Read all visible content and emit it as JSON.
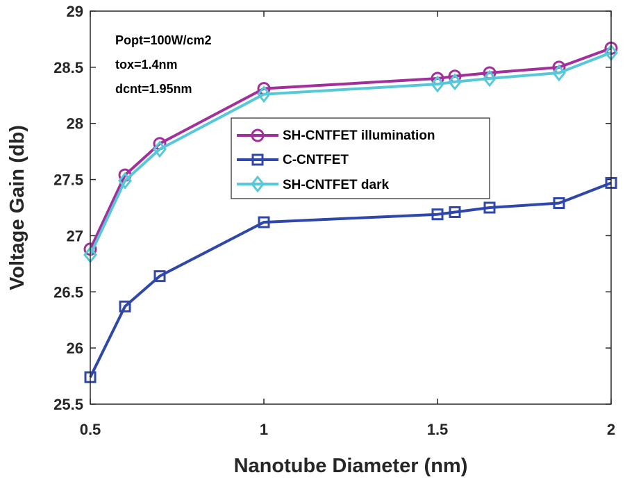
{
  "chart_data": {
    "type": "line",
    "title": "",
    "xlabel": "Nanotube Diameter  (nm)",
    "ylabel": "Voltage Gain  (db)",
    "xlim": [
      0.5,
      2
    ],
    "ylim": [
      25.5,
      29
    ],
    "xticks": [
      0.5,
      1,
      1.5,
      2
    ],
    "xtick_labels": [
      "0.5",
      "1",
      "1.5",
      "2"
    ],
    "yticks": [
      25.5,
      26,
      26.5,
      27,
      27.5,
      28,
      28.5,
      29
    ],
    "ytick_labels": [
      "25.5",
      "26",
      "26.5",
      "27",
      "27.5",
      "28",
      "28.5",
      "29"
    ],
    "grid": false,
    "legend_position": "center-right",
    "annotations": [
      "Popt=100W/cm2",
      "tox=1.4nm",
      "dcnt=1.95nm"
    ],
    "x": [
      0.5,
      0.6,
      0.7,
      1.0,
      1.5,
      1.55,
      1.65,
      1.85,
      2.0
    ],
    "series": [
      {
        "name": "SH-CNTFET illumination",
        "color": "#a2309b",
        "marker": "circle",
        "values": [
          26.88,
          27.54,
          27.82,
          28.31,
          28.4,
          28.42,
          28.45,
          28.5,
          28.67
        ]
      },
      {
        "name": "C-CNTFET",
        "color": "#2f47ab",
        "marker": "square",
        "values": [
          25.74,
          26.37,
          26.64,
          27.12,
          27.19,
          27.21,
          27.25,
          27.29,
          27.47
        ]
      },
      {
        "name": "SH-CNTFET dark",
        "color": "#56c8d8",
        "marker": "diamond",
        "values": [
          26.83,
          27.49,
          27.77,
          28.26,
          28.35,
          28.37,
          28.4,
          28.45,
          28.63
        ]
      }
    ]
  }
}
